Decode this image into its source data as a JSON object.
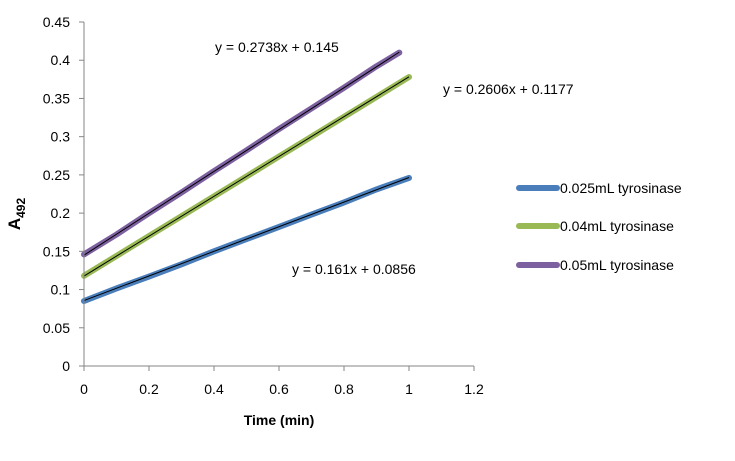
{
  "chart_data": {
    "type": "line",
    "title": "",
    "xlabel": "Time (min)",
    "ylabel": "A",
    "ylabel_sub": "492",
    "xlim": [
      0,
      1.2
    ],
    "ylim": [
      0,
      0.45
    ],
    "x_ticks": [
      "0",
      "0.2",
      "0.4",
      "0.6",
      "0.8",
      "1",
      "1.2"
    ],
    "x_tick_values": [
      0,
      0.2,
      0.4,
      0.6,
      0.8,
      1.0,
      1.2
    ],
    "y_ticks": [
      "0",
      "0.05",
      "0.1",
      "0.15",
      "0.2",
      "0.25",
      "0.3",
      "0.35",
      "0.4",
      "0.45"
    ],
    "y_tick_values": [
      0,
      0.05,
      0.1,
      0.15,
      0.2,
      0.25,
      0.3,
      0.35,
      0.4,
      0.45
    ],
    "grid": false,
    "legend_position": "right",
    "series": [
      {
        "name": "0.025mL tyrosinase",
        "color": "#4a7ebb",
        "x": [
          0,
          0.1,
          0.2,
          0.3,
          0.4,
          0.5,
          0.6,
          0.7,
          0.8,
          0.9,
          1.0
        ],
        "y": [
          0.085,
          0.1015,
          0.117,
          0.133,
          0.15,
          0.166,
          0.182,
          0.198,
          0.214,
          0.231,
          0.246
        ],
        "trendline": {
          "slope": 0.161,
          "intercept": 0.0856,
          "x_end": 1.0,
          "equation": "y = 0.161x + 0.0856"
        }
      },
      {
        "name": "0.04mL tyrosinase",
        "color": "#98b954",
        "x": [
          0,
          0.1,
          0.2,
          0.3,
          0.4,
          0.5,
          0.6,
          0.7,
          0.8,
          0.9,
          1.0
        ],
        "y": [
          0.118,
          0.144,
          0.17,
          0.196,
          0.222,
          0.248,
          0.274,
          0.3,
          0.326,
          0.352,
          0.378
        ],
        "trendline": {
          "slope": 0.2606,
          "intercept": 0.1177,
          "x_end": 1.0,
          "equation": "y = 0.2606x + 0.1177"
        }
      },
      {
        "name": "0.05mL tyrosinase",
        "color": "#7d60a0",
        "x": [
          0,
          0.1,
          0.2,
          0.3,
          0.4,
          0.5,
          0.6,
          0.7,
          0.8,
          0.9,
          0.97
        ],
        "y": [
          0.146,
          0.172,
          0.2,
          0.227,
          0.255,
          0.282,
          0.31,
          0.337,
          0.364,
          0.392,
          0.41
        ],
        "trendline": {
          "slope": 0.2738,
          "intercept": 0.145,
          "x_end": 0.97,
          "equation": "y = 0.2738x + 0.145"
        }
      }
    ]
  }
}
